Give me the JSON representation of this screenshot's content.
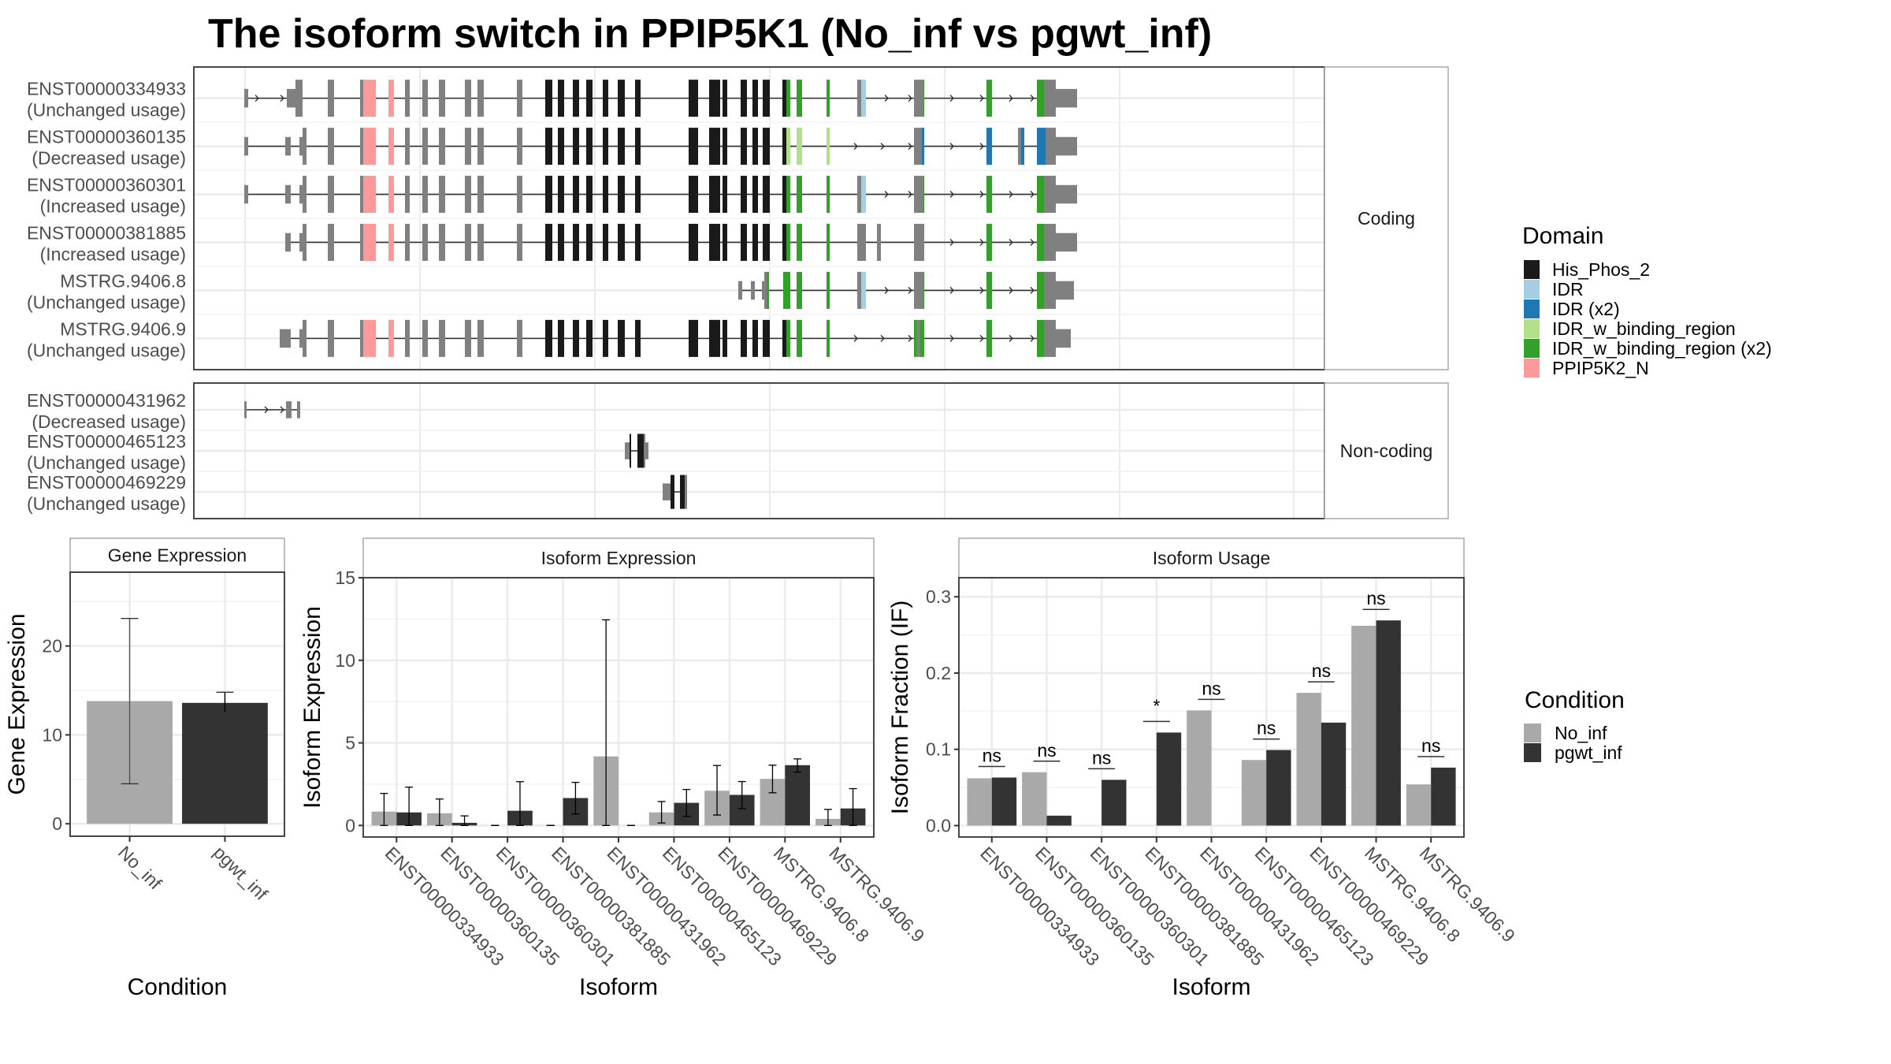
{
  "title": "The isoform switch in PPIP5K1 (No_inf vs pgwt_inf)",
  "colors": {
    "no_inf": "#a9a9a9",
    "pgwt_inf": "#333333",
    "utr": "#808080",
    "His_Phos_2": "#1a1a1a",
    "IDR": "#a6cee3",
    "IDR (x2)": "#1f78b4",
    "IDR_w_binding_region": "#b2df8a",
    "IDR_w_binding_region (x2)": "#33a02c",
    "PPIP5K2_N": "#fb9a99"
  },
  "structure": {
    "facets": [
      {
        "label": "Coding",
        "transcripts": [
          {
            "id": "ENST00000334933",
            "usage": "(Unchanged usage)"
          },
          {
            "id": "ENST00000360135",
            "usage": "(Decreased usage)"
          },
          {
            "id": "ENST00000360301",
            "usage": "(Increased usage)"
          },
          {
            "id": "ENST00000381885",
            "usage": "(Increased usage)"
          },
          {
            "id": "MSTRG.9406.8",
            "usage": "(Unchanged usage)"
          },
          {
            "id": "MSTRG.9406.9",
            "usage": "(Unchanged usage)"
          }
        ]
      },
      {
        "label": "Non-coding",
        "transcripts": [
          {
            "id": "ENST00000431962",
            "usage": "(Decreased usage)"
          },
          {
            "id": "ENST00000465123",
            "usage": "(Unchanged usage)"
          },
          {
            "id": "ENST00000469229",
            "usage": "(Unchanged usage)"
          }
        ]
      }
    ],
    "domain_legend": {
      "title": "Domain",
      "items": [
        "His_Phos_2",
        "IDR",
        "IDR (x2)",
        "IDR_w_binding_region",
        "IDR_w_binding_region (x2)",
        "PPIP5K2_N"
      ]
    }
  },
  "condition_legend": {
    "title": "Condition",
    "items": [
      "No_inf",
      "pgwt_inf"
    ]
  },
  "chart_data": [
    {
      "type": "bar",
      "title": "Gene Expression",
      "xlabel": "Condition",
      "ylabel": "Gene Expression",
      "categories": [
        "No_inf",
        "pgwt_inf"
      ],
      "values": [
        13.8,
        13.6
      ],
      "error_low": [
        4.5,
        12.5
      ],
      "error_high": [
        23.1,
        14.8
      ],
      "yticks": [
        0,
        10,
        20
      ],
      "ylim": [
        -1.4,
        28.3
      ],
      "grid": true
    },
    {
      "type": "bar",
      "title": "Isoform Expression",
      "xlabel": "Isoform",
      "ylabel": "Isoform Expression",
      "categories": [
        "ENST00000334933",
        "ENST00000360135",
        "ENST00000360301",
        "ENST00000381885",
        "ENST00000431962",
        "ENST00000465123",
        "ENST00000469229",
        "MSTRG.9406.8",
        "MSTRG.9406.9"
      ],
      "series": [
        {
          "name": "No_inf",
          "values": [
            0.84,
            0.74,
            0,
            0,
            4.18,
            0.79,
            2.1,
            2.82,
            0.4
          ],
          "error_low": [
            0,
            0,
            0,
            0,
            0,
            0.15,
            0.63,
            1.98,
            0
          ],
          "error_high": [
            1.94,
            1.6,
            0,
            0,
            12.45,
            1.45,
            3.63,
            3.65,
            0.97
          ]
        },
        {
          "name": "pgwt_inf",
          "values": [
            0.79,
            0.16,
            0.89,
            1.66,
            0,
            1.37,
            1.85,
            3.65,
            1.03
          ],
          "error_low": [
            0,
            0,
            0,
            0.69,
            0,
            0.55,
            1.02,
            3.23,
            0
          ],
          "error_high": [
            2.32,
            0.58,
            2.65,
            2.61,
            0,
            2.18,
            2.66,
            4.03,
            2.23
          ]
        }
      ],
      "yticks": [
        0,
        5,
        10,
        15
      ],
      "ylim": [
        -0.7,
        15.0
      ],
      "grid": true
    },
    {
      "type": "bar",
      "title": "Isoform Usage",
      "xlabel": "Isoform",
      "ylabel": "Isoform Fraction (IF)",
      "categories": [
        "ENST00000334933",
        "ENST00000360135",
        "ENST00000360301",
        "ENST00000381885",
        "ENST00000431962",
        "ENST00000465123",
        "ENST00000469229",
        "MSTRG.9406.8",
        "MSTRG.9406.9"
      ],
      "series": [
        {
          "name": "No_inf",
          "values": [
            0.062,
            0.07,
            0,
            0,
            0.151,
            0.086,
            0.174,
            0.262,
            0.054
          ]
        },
        {
          "name": "pgwt_inf",
          "values": [
            0.063,
            0.013,
            0.06,
            0.122,
            0,
            0.099,
            0.135,
            0.269,
            0.076
          ]
        }
      ],
      "significance": [
        "ns",
        "ns",
        "ns",
        "*",
        "ns",
        "ns",
        "ns",
        "ns",
        "ns"
      ],
      "yticks": [
        0.0,
        0.1,
        0.2,
        0.3
      ],
      "ytick_labels": [
        "0.0",
        "0.1",
        "0.2",
        "0.3"
      ],
      "ylim": [
        -0.015,
        0.325
      ],
      "grid": true
    }
  ]
}
